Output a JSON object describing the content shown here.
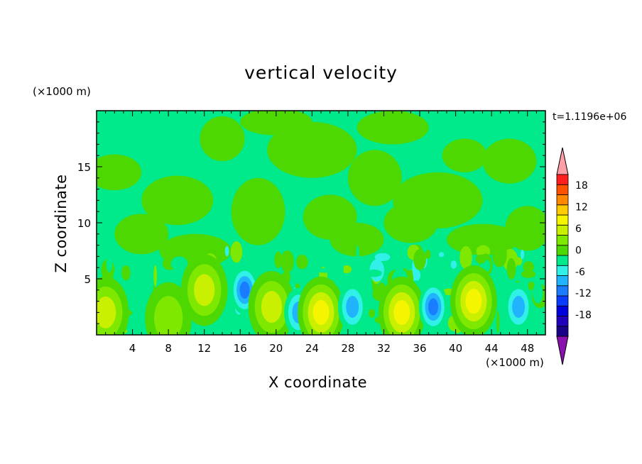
{
  "chart_data": {
    "type": "heatmap",
    "title": "vertical velocity",
    "xlabel": "X coordinate",
    "ylabel": "Z coordinate",
    "x_unit": "(×1000 m)",
    "z_unit": "(×1000 m)",
    "time_label": "t=1.1196e+06",
    "xlim": [
      0,
      50
    ],
    "ylim": [
      0,
      20
    ],
    "x_ticks": [
      4,
      8,
      12,
      16,
      20,
      24,
      28,
      32,
      36,
      40,
      44,
      48
    ],
    "y_ticks": [
      5,
      10,
      15
    ],
    "colorbar": {
      "levels": [
        -21,
        -18,
        -15,
        -12,
        -9,
        -6,
        -3,
        0,
        3,
        6,
        9,
        12,
        15,
        18,
        21
      ],
      "tick_labels": [
        "18",
        "12",
        "6",
        "0",
        "-6",
        "-12",
        "-18"
      ],
      "tick_values": [
        18,
        12,
        6,
        0,
        -6,
        -12,
        -18
      ],
      "colors": [
        "#1a0088",
        "#2200bb",
        "#0000dd",
        "#0a3cff",
        "#1a7dff",
        "#20b4ff",
        "#30f0e8",
        "#00e98a",
        "#4cd800",
        "#7ee800",
        "#c8f000",
        "#f5f500",
        "#ffcc00",
        "#ff8800",
        "#ff5200",
        "#ff1e1e"
      ],
      "over_color": "#ff9ea6",
      "under_color": "#8b10b0"
    },
    "features": [
      {
        "x": 1,
        "z": 2.0,
        "value": 9
      },
      {
        "x": 8,
        "z": 1.5,
        "value": 6
      },
      {
        "x": 12,
        "z": 4.0,
        "value": 10
      },
      {
        "x": 16.5,
        "z": 4.0,
        "value": -12
      },
      {
        "x": 19.5,
        "z": 2.5,
        "value": 10
      },
      {
        "x": 22.5,
        "z": 2.0,
        "value": -9
      },
      {
        "x": 25,
        "z": 2.0,
        "value": 11
      },
      {
        "x": 28.5,
        "z": 2.5,
        "value": -9
      },
      {
        "x": 34,
        "z": 2.0,
        "value": 12
      },
      {
        "x": 37.5,
        "z": 2.5,
        "value": -12
      },
      {
        "x": 42,
        "z": 3.0,
        "value": 12
      },
      {
        "x": 47,
        "z": 2.5,
        "value": -9
      }
    ]
  }
}
